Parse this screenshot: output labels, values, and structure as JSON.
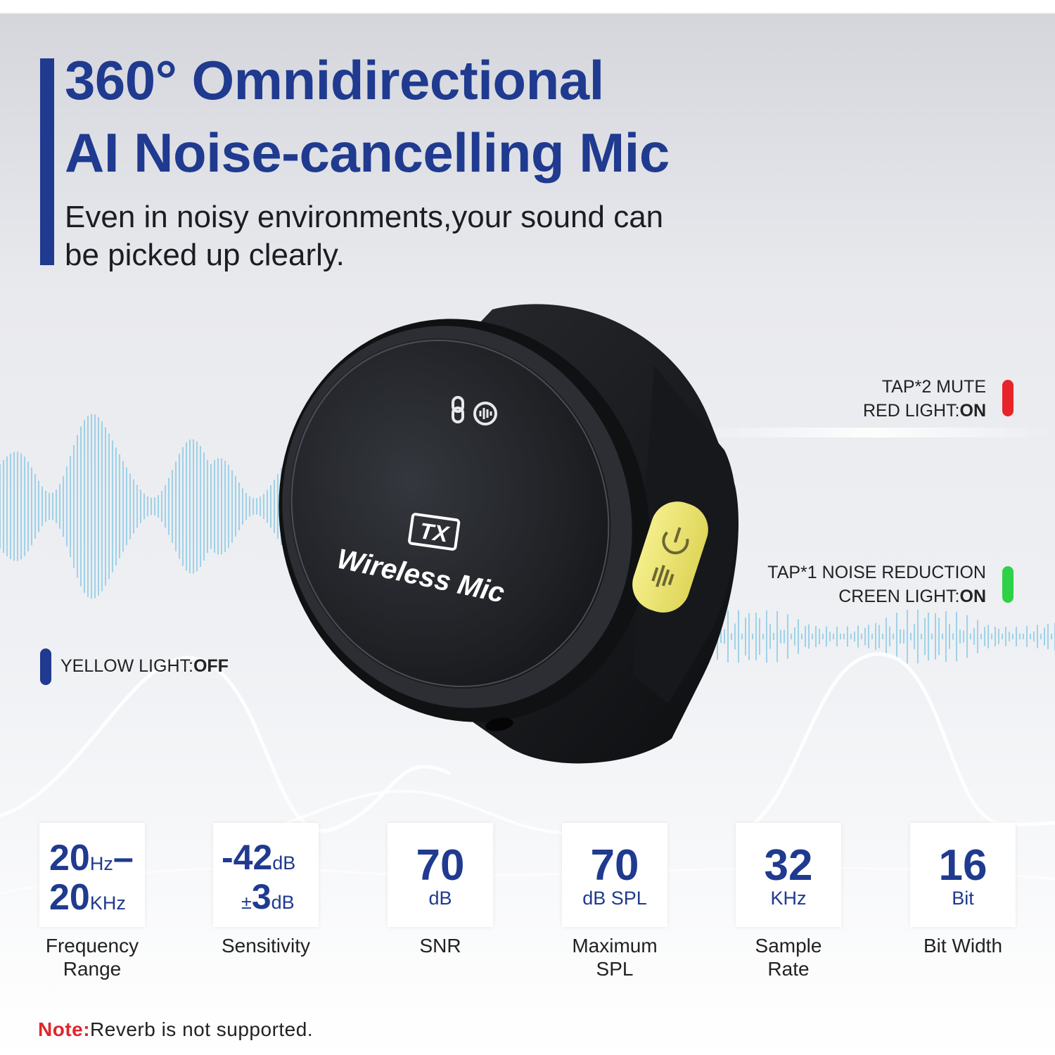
{
  "header": {
    "title_line1": "360° Omnidirectional",
    "title_line2": "AI Noise-cancelling Mic",
    "subtitle_line1": "Even in noisy environments,your sound can",
    "subtitle_line2": "be picked up clearly."
  },
  "product": {
    "badge": "TX",
    "label": "Wireless Mic"
  },
  "indicators": {
    "mute": {
      "line1": "TAP*2 MUTE",
      "line2_prefix": "RED LIGHT:",
      "line2_state": "ON",
      "color": "#e8242a"
    },
    "noise_reduction": {
      "line1": "TAP*1 NOISE REDUCTION",
      "line2_prefix": "CREEN LIGHT:",
      "line2_state": "ON",
      "color": "#2fd146"
    },
    "yellow": {
      "prefix": "YELLOW LIGHT:",
      "state": "OFF",
      "color": "#1f3a8f"
    }
  },
  "specs": {
    "frequency": {
      "v1": "20",
      "u1": "Hz",
      "dash": "–",
      "v2": "20",
      "u2": "KHz",
      "label_line1": "Frequency",
      "label_line2": "Range"
    },
    "sensitivity": {
      "v1": "-42",
      "u1": "dB",
      "pm": "±",
      "v2": "3",
      "u2": "dB",
      "label_line1": "Sensitivity"
    },
    "snr": {
      "value": "70",
      "unit": "dB",
      "label_line1": "SNR"
    },
    "max_spl": {
      "value": "70",
      "unit": "dB SPL",
      "label_line1": "Maximum",
      "label_line2": "SPL"
    },
    "sample_rate": {
      "value": "32",
      "unit": "KHz",
      "label_line1": "Sample",
      "label_line2": "Rate"
    },
    "bit_width": {
      "value": "16",
      "unit": "Bit",
      "label_line1": "Bit Width"
    }
  },
  "note": {
    "prefix": "Note:",
    "text": "Reverb is not supported."
  },
  "colors": {
    "brand_blue": "#1f3a8f",
    "wave_blue": "#8ccbe6",
    "note_red": "#e0262a"
  }
}
